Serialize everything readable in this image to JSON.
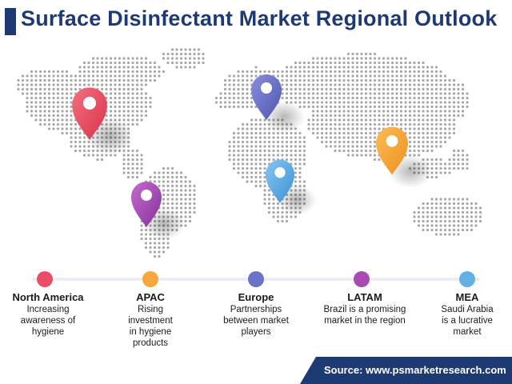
{
  "title": "Surface Disinfectant Market Regional Outlook",
  "source": "Source: www.psmarketresearch.com",
  "colors": {
    "title": "#1d3b72",
    "north_america": "#e94e64",
    "apac": "#f7a83c",
    "europe": "#6b73c9",
    "latam": "#a84ab2",
    "mea": "#63b0e6",
    "map_dots": "#a7a7a7"
  },
  "regions": [
    {
      "name": "North America",
      "desc": [
        "Increasing",
        "awareness of",
        "hygiene"
      ]
    },
    {
      "name": "APAC",
      "desc": [
        "Rising",
        "investment",
        "in hygiene",
        "products"
      ]
    },
    {
      "name": "Europe",
      "desc": [
        "Partnerships",
        "between market",
        "players"
      ]
    },
    {
      "name": "LATAM",
      "desc": [
        "Brazil is a promising",
        "market in the region"
      ]
    },
    {
      "name": "MEA",
      "desc": [
        "Saudi Arabia",
        "is a lucrative",
        "market"
      ]
    }
  ]
}
